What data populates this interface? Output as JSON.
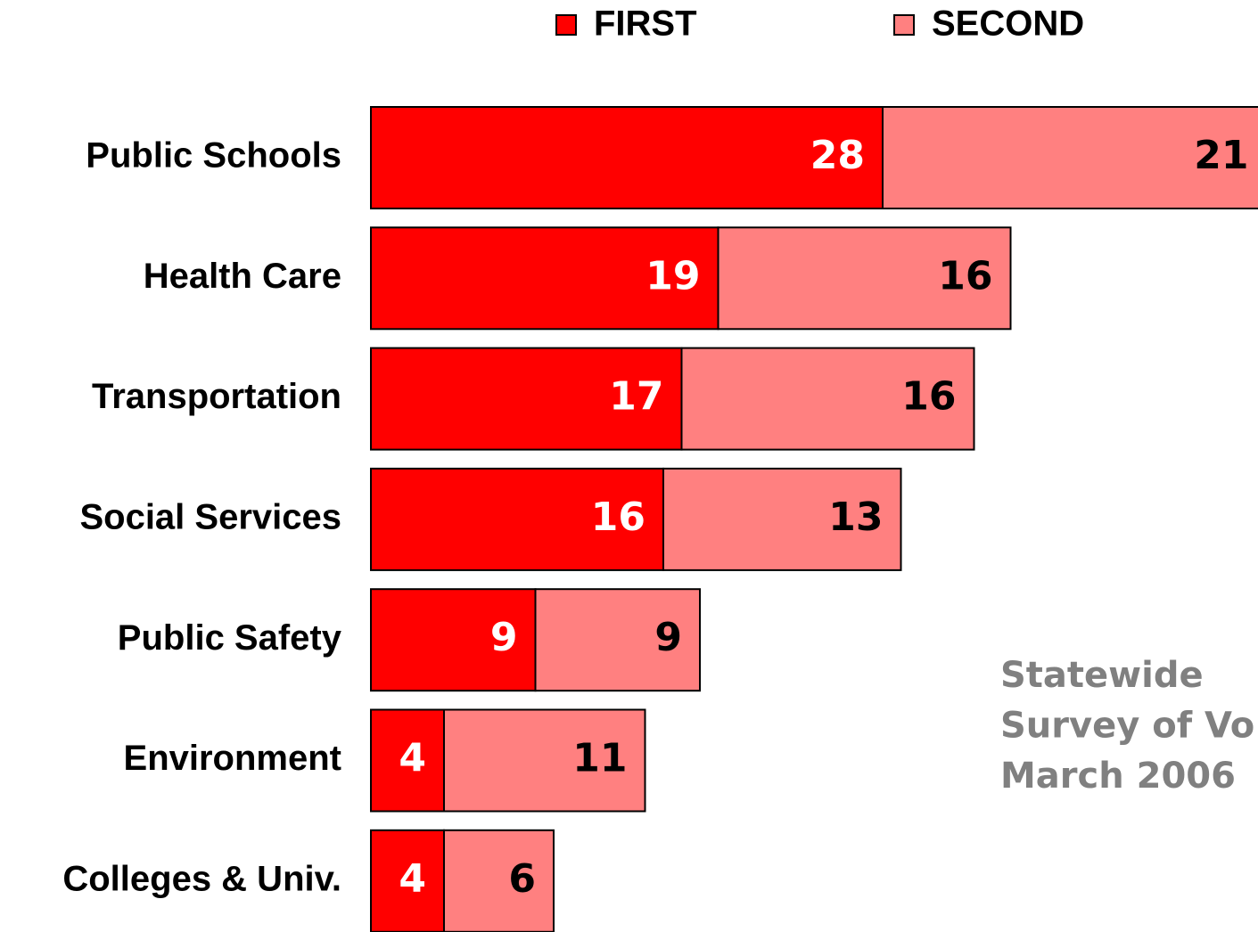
{
  "chart_data": {
    "type": "stacked-bar-horizontal",
    "categories": [
      "Public Schools",
      "Health Care",
      "Transportation",
      "Social Services",
      "Public Safety",
      "Environment",
      "Colleges & Univ."
    ],
    "series": [
      {
        "name": "FIRST",
        "color": "#ff0000",
        "values": [
          28,
          19,
          17,
          16,
          9,
          4,
          4
        ]
      },
      {
        "name": "SECOND",
        "color": "#ff8080",
        "values": [
          21,
          16,
          16,
          13,
          9,
          11,
          6
        ]
      }
    ],
    "annotation": [
      "Statewide",
      "Survey of Vo",
      "March 2006"
    ],
    "legend": "top"
  }
}
